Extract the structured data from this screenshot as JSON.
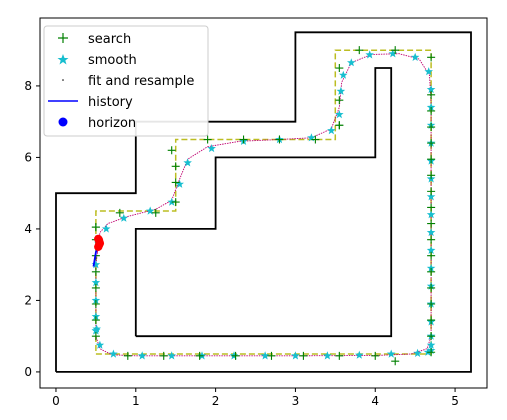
{
  "chart_data": {
    "type": "line",
    "title": "",
    "xlabel": "",
    "ylabel": "",
    "xlim": [
      -0.2,
      5.4
    ],
    "ylim": [
      -0.45,
      9.9
    ],
    "xticks": [
      "0",
      "1",
      "2",
      "3",
      "4",
      "5"
    ],
    "yticks": [
      "0",
      "2",
      "4",
      "6",
      "8"
    ],
    "grid": false,
    "legend": {
      "placement": "top-left",
      "entries": [
        {
          "label": "search",
          "marker": "plus",
          "color": "#008000"
        },
        {
          "label": "smooth",
          "marker": "star",
          "color": "#17becf"
        },
        {
          "label": "fit and resample",
          "marker": "dot",
          "color": "#000000"
        },
        {
          "label": "history",
          "marker": "line",
          "color": "#0000ff"
        },
        {
          "label": "horizon",
          "marker": "circle",
          "color": "#0000ff"
        }
      ]
    },
    "walls": {
      "color": "#000000",
      "outer": [
        [
          0,
          0
        ],
        [
          5.2,
          0
        ],
        [
          5.2,
          9.5
        ],
        [
          3,
          9.5
        ],
        [
          3,
          7
        ],
        [
          1,
          7
        ],
        [
          1,
          5
        ],
        [
          0,
          5
        ],
        [
          0,
          0
        ]
      ],
      "inner": [
        [
          1,
          1
        ],
        [
          4.2,
          1
        ],
        [
          4.2,
          8.5
        ],
        [
          4,
          8.5
        ],
        [
          4,
          6
        ],
        [
          2,
          6
        ],
        [
          2,
          4
        ],
        [
          1,
          4
        ],
        [
          1,
          1
        ]
      ]
    },
    "corridor": {
      "color": "#bcbd22",
      "points": [
        [
          0.5,
          0.5
        ],
        [
          4.7,
          0.5
        ],
        [
          4.7,
          9
        ],
        [
          3.5,
          9
        ],
        [
          3.5,
          6.5
        ],
        [
          1.5,
          6.5
        ],
        [
          1.5,
          4.5
        ],
        [
          0.5,
          4.5
        ],
        [
          0.5,
          0.5
        ]
      ]
    },
    "search": {
      "color": "#008000",
      "x": [
        0.5,
        0.5,
        0.5,
        0.5,
        0.5,
        0.5,
        0.5,
        0.5,
        0.9,
        1.35,
        1.8,
        2.25,
        2.7,
        3.1,
        3.55,
        4,
        4.25,
        4.7,
        4.7,
        4.7,
        4.7,
        4.7,
        4.7,
        4.7,
        4.7,
        4.7,
        4.7,
        4.7,
        4.7,
        4.7,
        4.7,
        4.7,
        4.7,
        4.7,
        4.7,
        4.25,
        3.8,
        3.55,
        3.55,
        3.55,
        3.55,
        3.25,
        2.8,
        2.35,
        1.9,
        1.45,
        1.5,
        1.5,
        1.5,
        1.25,
        0.8,
        0.5
      ],
      "y": [
        1.0,
        1.45,
        1.9,
        2.35,
        2.8,
        3.25,
        3.7,
        4.05,
        0.45,
        0.45,
        0.45,
        0.45,
        0.45,
        0.45,
        0.45,
        0.45,
        0.3,
        0.55,
        1.0,
        1.45,
        1.9,
        2.35,
        2.8,
        3.25,
        3.7,
        4.15,
        4.6,
        5.05,
        5.5,
        5.95,
        6.4,
        6.85,
        7.3,
        7.75,
        8.8,
        9.0,
        9.0,
        8.5,
        7.6,
        6.9,
        6.9,
        6.5,
        6.5,
        6.5,
        6.5,
        6.2,
        5.75,
        5.3,
        4.75,
        4.45,
        4.45,
        4.05
      ]
    },
    "smooth": {
      "color": "#17becf",
      "x": [
        0.5,
        0.5,
        0.5,
        0.5,
        0.5,
        0.53,
        0.63,
        0.85,
        1.18,
        1.45,
        1.55,
        1.65,
        1.95,
        2.35,
        2.8,
        3.2,
        3.45,
        3.55,
        3.57,
        3.6,
        3.7,
        3.93,
        4.22,
        4.5,
        4.67,
        4.7,
        4.7,
        4.7,
        4.7,
        4.7,
        4.7,
        4.7,
        4.7,
        4.7,
        4.7,
        4.7,
        4.7,
        4.7,
        4.7,
        4.7,
        4.7,
        4.7,
        4.66,
        4.53,
        4.2,
        3.8,
        3.4,
        3.0,
        2.62,
        2.23,
        1.83,
        1.45,
        1.08,
        0.72,
        0.55,
        0.51,
        0.5
      ],
      "y": [
        1.15,
        1.55,
        2.0,
        2.5,
        3.0,
        3.6,
        4.0,
        4.3,
        4.5,
        4.75,
        5.25,
        5.85,
        6.25,
        6.45,
        6.5,
        6.55,
        6.75,
        7.2,
        7.85,
        8.3,
        8.65,
        8.87,
        8.9,
        8.8,
        8.4,
        7.9,
        7.4,
        6.9,
        6.4,
        5.9,
        5.4,
        4.9,
        4.4,
        3.9,
        3.4,
        2.9,
        2.4,
        1.9,
        1.4,
        1.0,
        0.75,
        0.6,
        0.55,
        0.52,
        0.5,
        0.47,
        0.45,
        0.45,
        0.45,
        0.45,
        0.45,
        0.45,
        0.45,
        0.5,
        0.75,
        1.2,
        1.15
      ]
    },
    "fit_and_resample": {
      "color": "#c00070",
      "points": [
        [
          0.52,
          3.35
        ],
        [
          0.55,
          3.9
        ],
        [
          0.65,
          4.15
        ],
        [
          0.9,
          4.35
        ],
        [
          1.25,
          4.55
        ],
        [
          1.45,
          4.8
        ],
        [
          1.55,
          5.4
        ],
        [
          1.65,
          5.95
        ],
        [
          1.9,
          6.3
        ],
        [
          2.3,
          6.45
        ],
        [
          2.8,
          6.5
        ],
        [
          3.2,
          6.55
        ],
        [
          3.45,
          6.8
        ],
        [
          3.55,
          7.4
        ],
        [
          3.58,
          8.1
        ],
        [
          3.7,
          8.65
        ],
        [
          3.95,
          8.88
        ],
        [
          4.3,
          8.9
        ],
        [
          4.55,
          8.75
        ],
        [
          4.68,
          8.3
        ],
        [
          4.7,
          7.5
        ],
        [
          4.7,
          6
        ],
        [
          4.7,
          4
        ],
        [
          4.7,
          2
        ],
        [
          4.7,
          1.0
        ],
        [
          4.65,
          0.65
        ],
        [
          4.45,
          0.5
        ],
        [
          4.0,
          0.46
        ],
        [
          3.0,
          0.45
        ],
        [
          2.0,
          0.45
        ],
        [
          1.0,
          0.45
        ],
        [
          0.7,
          0.48
        ],
        [
          0.55,
          0.65
        ],
        [
          0.5,
          1.0
        ],
        [
          0.5,
          1.5
        ],
        [
          0.5,
          2.2
        ],
        [
          0.5,
          3.0
        ],
        [
          0.52,
          3.35
        ]
      ]
    },
    "history": {
      "color": "#0000ff",
      "points": [
        [
          0.47,
          2.95
        ],
        [
          0.5,
          3.35
        ],
        [
          0.53,
          3.55
        ]
      ]
    },
    "horizon": {
      "color": "#0000ff",
      "points": [
        [
          0.53,
          3.5
        ],
        [
          0.54,
          3.55
        ],
        [
          0.55,
          3.6
        ],
        [
          0.54,
          3.68
        ],
        [
          0.53,
          3.72
        ]
      ],
      "highlight_color": "#ff0000"
    }
  }
}
